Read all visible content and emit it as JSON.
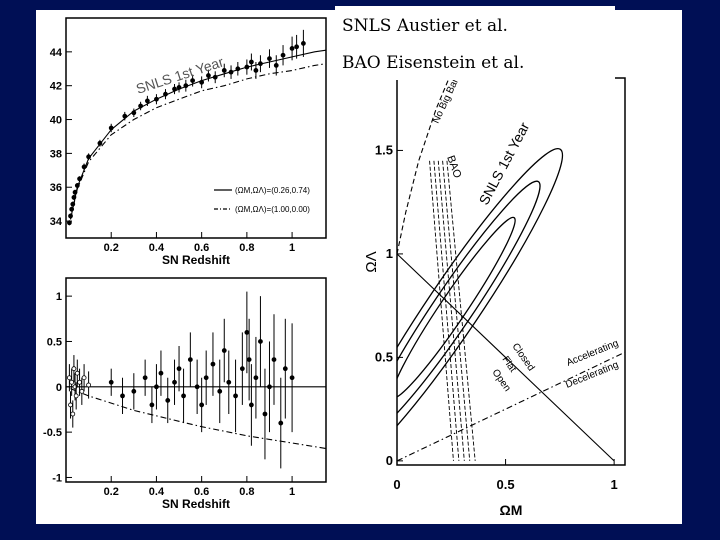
{
  "slide": {
    "background": "#000f55",
    "panel_color": "#ffffff",
    "caption_lines": [
      "SNLS Austier et al.",
      "BAO Eisenstein et al."
    ]
  },
  "chart_data": [
    {
      "id": "hubble",
      "type": "scatter",
      "xlabel": "SN Redshift",
      "ylabel": "",
      "xlim": [
        0,
        1.15
      ],
      "ylim": [
        33,
        46
      ],
      "xticks": [
        0.2,
        0.4,
        0.6,
        0.8,
        1
      ],
      "xtick_labels": [
        "0.2",
        "0.4",
        "0.6",
        "0.8",
        "1"
      ],
      "yticks": [
        34,
        36,
        38,
        40,
        42,
        44
      ],
      "ytick_labels": [
        "34",
        "36",
        "38",
        "40",
        "42",
        "44"
      ],
      "annotation": "SNLS 1st Year",
      "legend": [
        "(ΩM,ΩΛ)=(0.26,0.74)",
        "(ΩM,ΩΛ)=(1.00,0.00)"
      ],
      "legend_position": "lower-right",
      "series": [
        {
          "style": "solid",
          "x": [
            0.02,
            0.05,
            0.1,
            0.2,
            0.3,
            0.4,
            0.5,
            0.6,
            0.7,
            0.8,
            0.9,
            1.0,
            1.1,
            1.15
          ],
          "y": [
            34.1,
            36.0,
            37.7,
            39.4,
            40.5,
            41.2,
            41.8,
            42.3,
            42.7,
            43.1,
            43.4,
            43.7,
            44.0,
            44.1
          ]
        },
        {
          "style": "dashdot",
          "x": [
            0.02,
            0.05,
            0.1,
            0.2,
            0.3,
            0.4,
            0.5,
            0.6,
            0.7,
            0.8,
            0.9,
            1.0,
            1.1,
            1.15
          ],
          "y": [
            34.1,
            35.9,
            37.5,
            39.1,
            40.0,
            40.7,
            41.2,
            41.7,
            42.0,
            42.4,
            42.7,
            42.9,
            43.2,
            43.3
          ]
        }
      ],
      "points": {
        "x": [
          0.015,
          0.02,
          0.025,
          0.03,
          0.035,
          0.04,
          0.05,
          0.06,
          0.08,
          0.1,
          0.15,
          0.2,
          0.26,
          0.3,
          0.33,
          0.36,
          0.4,
          0.44,
          0.48,
          0.5,
          0.53,
          0.56,
          0.6,
          0.63,
          0.66,
          0.7,
          0.73,
          0.76,
          0.8,
          0.82,
          0.84,
          0.86,
          0.9,
          0.93,
          0.96,
          1.0,
          1.02,
          1.05
        ],
        "y": [
          33.9,
          34.3,
          34.7,
          35.0,
          35.4,
          35.7,
          36.1,
          36.5,
          37.2,
          37.8,
          38.6,
          39.5,
          40.2,
          40.4,
          40.8,
          41.1,
          41.2,
          41.5,
          41.8,
          41.9,
          42.0,
          42.3,
          42.2,
          42.6,
          42.5,
          42.9,
          42.8,
          43.0,
          43.1,
          43.4,
          42.9,
          43.3,
          43.6,
          43.2,
          43.8,
          44.2,
          44.3,
          44.5
        ],
        "err": [
          0.15,
          0.15,
          0.15,
          0.15,
          0.15,
          0.15,
          0.15,
          0.15,
          0.2,
          0.2,
          0.2,
          0.25,
          0.25,
          0.25,
          0.25,
          0.3,
          0.3,
          0.3,
          0.3,
          0.3,
          0.35,
          0.35,
          0.35,
          0.35,
          0.35,
          0.4,
          0.4,
          0.4,
          0.45,
          0.5,
          0.5,
          0.5,
          0.55,
          0.6,
          0.6,
          0.7,
          0.7,
          0.8
        ]
      }
    },
    {
      "id": "residual",
      "type": "scatter",
      "xlabel": "SN Redshift",
      "ylabel": "",
      "xlim": [
        0,
        1.15
      ],
      "ylim": [
        -1.05,
        1.2
      ],
      "xticks": [
        0.2,
        0.4,
        0.6,
        0.8,
        1
      ],
      "xtick_labels": [
        "0.2",
        "0.4",
        "0.6",
        "0.8",
        "1"
      ],
      "yticks": [
        -1,
        -0.5,
        0,
        0.5,
        1
      ],
      "ytick_labels": [
        "-1",
        "-0.5",
        "0",
        "0.5",
        "1"
      ],
      "series": [
        {
          "style": "solid",
          "x": [
            0,
            1.15
          ],
          "y": [
            0,
            0
          ]
        },
        {
          "style": "dashdot",
          "x": [
            0.02,
            0.1,
            0.2,
            0.3,
            0.4,
            0.5,
            0.6,
            0.7,
            0.8,
            0.9,
            1.0,
            1.15
          ],
          "y": [
            -0.02,
            -0.1,
            -0.18,
            -0.26,
            -0.32,
            -0.38,
            -0.44,
            -0.49,
            -0.54,
            -0.58,
            -0.62,
            -0.68
          ]
        }
      ],
      "points": {
        "x": [
          0.015,
          0.02,
          0.025,
          0.03,
          0.035,
          0.04,
          0.045,
          0.05,
          0.06,
          0.07,
          0.08,
          0.1,
          0.2,
          0.25,
          0.3,
          0.35,
          0.38,
          0.4,
          0.42,
          0.45,
          0.48,
          0.5,
          0.52,
          0.55,
          0.58,
          0.6,
          0.62,
          0.65,
          0.68,
          0.7,
          0.72,
          0.75,
          0.78,
          0.8,
          0.81,
          0.82,
          0.84,
          0.86,
          0.88,
          0.9,
          0.92,
          0.95,
          0.97,
          1.0
        ],
        "y": [
          0.1,
          -0.2,
          0.05,
          -0.3,
          0.2,
          0.0,
          -0.1,
          0.15,
          0.05,
          -0.05,
          0.1,
          0.02,
          0.05,
          -0.1,
          -0.05,
          0.1,
          -0.2,
          0.0,
          0.15,
          -0.15,
          0.05,
          0.2,
          -0.1,
          0.3,
          0.0,
          -0.2,
          0.1,
          0.25,
          -0.05,
          0.4,
          0.05,
          -0.1,
          0.2,
          0.6,
          0.3,
          -0.2,
          0.1,
          0.5,
          -0.3,
          0.0,
          0.3,
          -0.4,
          0.2,
          0.1
        ],
        "err": [
          0.15,
          0.15,
          0.15,
          0.15,
          0.15,
          0.15,
          0.15,
          0.15,
          0.15,
          0.15,
          0.15,
          0.15,
          0.15,
          0.2,
          0.2,
          0.2,
          0.2,
          0.25,
          0.25,
          0.25,
          0.25,
          0.25,
          0.3,
          0.3,
          0.3,
          0.3,
          0.3,
          0.35,
          0.35,
          0.35,
          0.35,
          0.4,
          0.4,
          0.45,
          0.45,
          0.45,
          0.45,
          0.5,
          0.5,
          0.5,
          0.5,
          0.5,
          0.55,
          0.6
        ]
      }
    },
    {
      "id": "omega",
      "type": "line",
      "xlabel": "ΩM",
      "ylabel": "ΩΛ",
      "xlim": [
        0,
        1.05
      ],
      "ylim": [
        -0.02,
        1.85
      ],
      "xticks": [
        0,
        0.5,
        1
      ],
      "xtick_labels": [
        "0",
        "0.5",
        "1"
      ],
      "yticks": [
        0,
        0.5,
        1,
        1.5
      ],
      "ytick_labels": [
        "0",
        "0.5",
        "1",
        "1.5"
      ],
      "labels": [
        "No Big Bang",
        "BAO",
        "SNLS 1st Year",
        "Closed",
        "Flat",
        "Open",
        "Accelerating",
        "Decelerating"
      ],
      "series": [
        {
          "name": "Flat",
          "style": "solid",
          "x": [
            0,
            1
          ],
          "y": [
            1,
            0
          ]
        },
        {
          "name": "Accelerating",
          "style": "dashdot",
          "x": [
            0,
            1.05
          ],
          "y": [
            0,
            0.525
          ]
        },
        {
          "name": "No Big Bang",
          "style": "dashed",
          "x": [
            0,
            0.04,
            0.1,
            0.18,
            0.24
          ],
          "y": [
            1.0,
            1.2,
            1.45,
            1.7,
            1.85
          ]
        }
      ],
      "ellipses": [
        {
          "cx": 0.26,
          "cy": 0.74,
          "rx": 0.5,
          "ry": 0.06,
          "angle": 56
        },
        {
          "cx": 0.26,
          "cy": 0.74,
          "rx": 0.7,
          "ry": 0.09,
          "angle": 56
        },
        {
          "cx": 0.26,
          "cy": 0.74,
          "rx": 0.88,
          "ry": 0.12,
          "angle": 56
        }
      ],
      "bao_band": {
        "x_top": [
          0.15,
          0.23
        ],
        "x_bottom": [
          0.26,
          0.36
        ]
      }
    }
  ]
}
